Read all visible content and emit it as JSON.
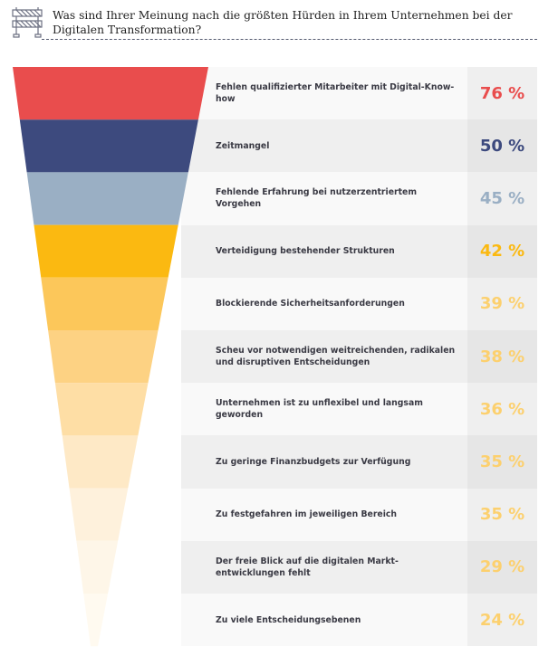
{
  "header": {
    "icon": "road-barrier-icon",
    "title": "Was sind Ihrer Meinung nach die größten Hürden in Ihrem Unternehmen bei der Digitalen Transformation?"
  },
  "chart_data": {
    "type": "funnel",
    "title": "Was sind Ihrer Meinung nach die größten Hürden in Ihrem Unternehmen bei der Digitalen Transformation?",
    "unit": "%",
    "items": [
      {
        "label": "Fehlen qualifizierter Mitarbeiter mit Digital-Know-how",
        "value": 76,
        "display": "76 %",
        "color": "#e94d4d",
        "text_color": "#e94d4d"
      },
      {
        "label": "Zeitmangel",
        "value": 50,
        "display": "50 %",
        "color": "#3d4a7e",
        "text_color": "#3d4a7e"
      },
      {
        "label": "Fehlende Erfahrung bei nutzerzentriertem Vorgehen",
        "value": 45,
        "display": "45 %",
        "color": "#9aafc4",
        "text_color": "#9aafc4"
      },
      {
        "label": "Verteidigung bestehender Strukturen",
        "value": 42,
        "display": "42 %",
        "color": "#fbb911",
        "text_color": "#fbb911"
      },
      {
        "label": "Blockierende Sicherheitsanforderungen",
        "value": 39,
        "display": "39 %",
        "color": "#fcc75a",
        "text_color": "#fcd06e"
      },
      {
        "label": "Scheu vor notwendigen weitreichenden, radikalen und disruptiven Entscheidungen",
        "value": 38,
        "display": "38 %",
        "color": "#fdd283",
        "text_color": "#fcd06e"
      },
      {
        "label": "Unternehmen ist zu unflexibel und langsam geworden",
        "value": 36,
        "display": "36 %",
        "color": "#fedea5",
        "text_color": "#fcd06e"
      },
      {
        "label": "Zu geringe Finanzbudgets zur Verfügung",
        "value": 35,
        "display": "35 %",
        "color": "#fee9c6",
        "text_color": "#fcd06e"
      },
      {
        "label": "Zu festgefahren im jeweiligen Bereich",
        "value": 35,
        "display": "35 %",
        "color": "#fef1dc",
        "text_color": "#fcd06e"
      },
      {
        "label": "Der freie Blick auf die digitalen Markt- entwicklungen fehlt",
        "value": 29,
        "display": "29 %",
        "color": "#fef6e8",
        "text_color": "#fcd06e"
      },
      {
        "label": "Zu viele Entscheidungsebenen",
        "value": 24,
        "display": "24 %",
        "color": "#fffaf0",
        "text_color": "#fcd06e"
      }
    ]
  }
}
